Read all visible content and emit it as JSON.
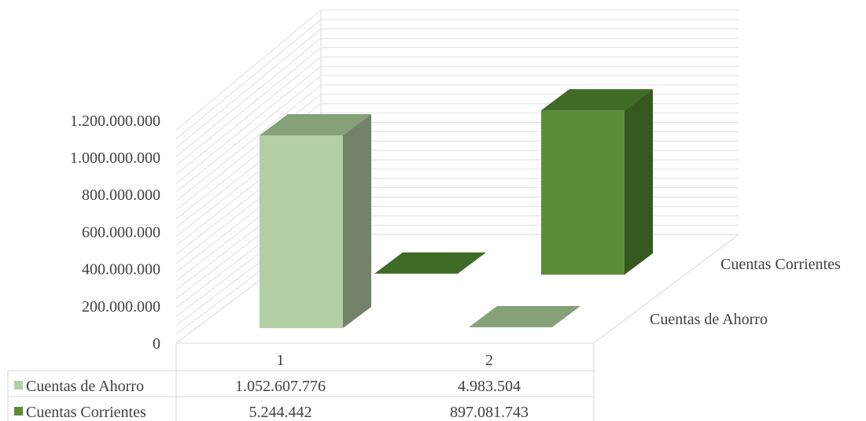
{
  "chart_data": {
    "type": "bar",
    "categories": [
      "1",
      "2"
    ],
    "series": [
      {
        "name": "Cuentas de Ahorro",
        "values": [
          1052607776,
          4983504
        ],
        "labels": [
          "1.052.607.776",
          "4.983.504"
        ],
        "color": "#b3cfa5"
      },
      {
        "name": "Cuentas Corrientes",
        "values": [
          5244442,
          897081743
        ],
        "labels": [
          "5.244.442",
          "897.081.743"
        ],
        "color": "#5b8c3a"
      }
    ],
    "y_ticks": [
      "0",
      "200.000.000",
      "400.000.000",
      "600.000.000",
      "800.000.000",
      "1.000.000.000",
      "1.200.000.000"
    ],
    "ylim": [
      0,
      1200000000
    ],
    "title": "",
    "xlabel": "",
    "ylabel": "",
    "legend": "data-table",
    "grid": true
  }
}
